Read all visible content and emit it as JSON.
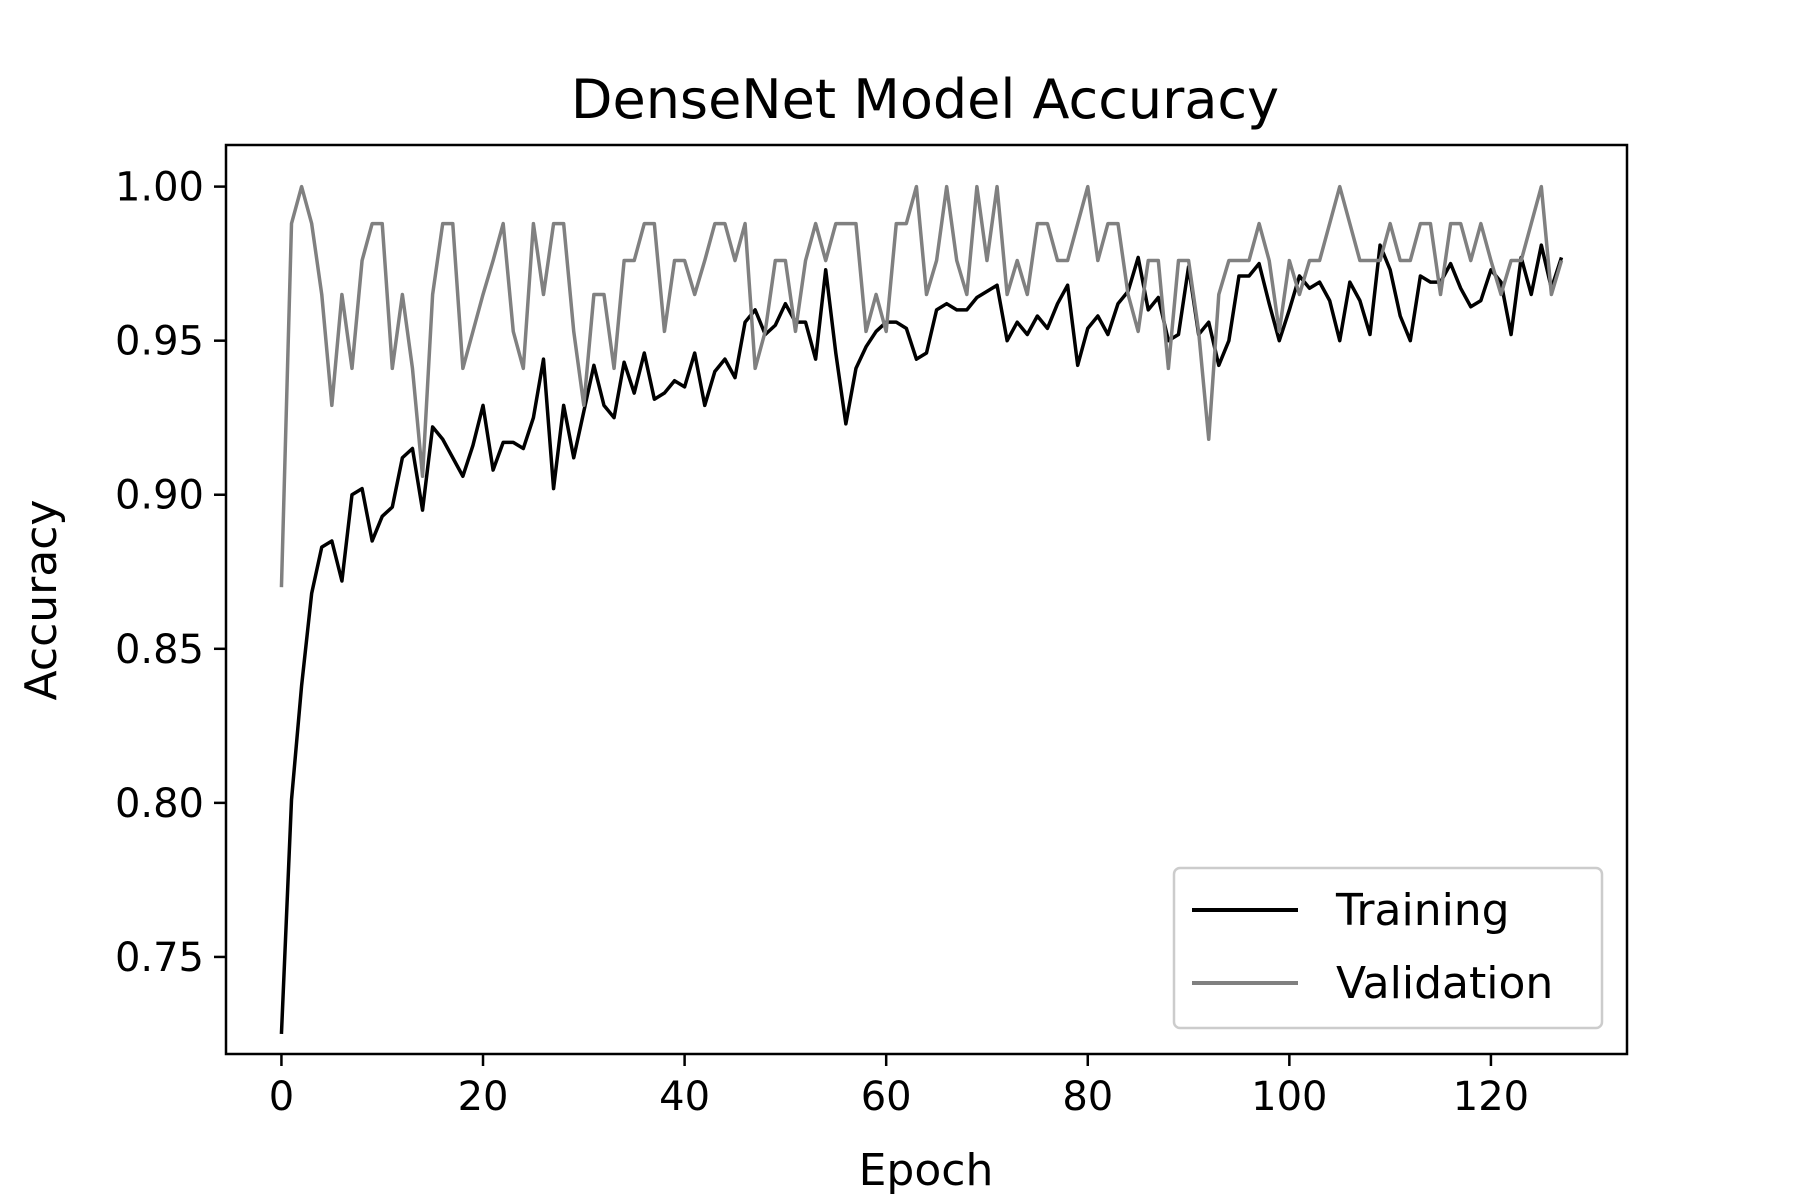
{
  "chart_data": {
    "type": "line",
    "title": "DenseNet Model Accuracy",
    "xlabel": "Epoch",
    "ylabel": "Accuracy",
    "xlim": [
      -5.5,
      133.5
    ],
    "ylim": [
      0.7185,
      1.0135
    ],
    "xticks": [
      0,
      20,
      40,
      60,
      80,
      100,
      120
    ],
    "yticks": [
      0.75,
      0.8,
      0.85,
      0.9,
      0.95,
      1.0
    ],
    "ytick_labels": [
      "0.75",
      "0.80",
      "0.85",
      "0.90",
      "0.95",
      "1.00"
    ],
    "grid": false,
    "legend_position": "lower-right",
    "series": [
      {
        "name": "Training",
        "color": "#000000",
        "values": [
          0.725,
          0.801,
          0.838,
          0.868,
          0.883,
          0.885,
          0.872,
          0.9,
          0.902,
          0.885,
          0.893,
          0.896,
          0.912,
          0.915,
          0.895,
          0.922,
          0.918,
          0.912,
          0.906,
          0.916,
          0.929,
          0.908,
          0.917,
          0.917,
          0.915,
          0.925,
          0.944,
          0.902,
          0.929,
          0.912,
          0.927,
          0.942,
          0.929,
          0.925,
          0.943,
          0.933,
          0.946,
          0.931,
          0.933,
          0.937,
          0.935,
          0.946,
          0.929,
          0.94,
          0.944,
          0.938,
          0.956,
          0.96,
          0.952,
          0.955,
          0.962,
          0.956,
          0.956,
          0.944,
          0.973,
          0.946,
          0.923,
          0.941,
          0.948,
          0.953,
          0.956,
          0.956,
          0.954,
          0.944,
          0.946,
          0.96,
          0.962,
          0.96,
          0.96,
          0.964,
          0.966,
          0.968,
          0.95,
          0.956,
          0.952,
          0.958,
          0.954,
          0.962,
          0.968,
          0.942,
          0.954,
          0.958,
          0.952,
          0.962,
          0.966,
          0.977,
          0.96,
          0.964,
          0.95,
          0.952,
          0.974,
          0.952,
          0.956,
          0.942,
          0.95,
          0.971,
          0.971,
          0.975,
          0.962,
          0.95,
          0.96,
          0.971,
          0.967,
          0.969,
          0.963,
          0.95,
          0.969,
          0.963,
          0.952,
          0.981,
          0.973,
          0.958,
          0.95,
          0.971,
          0.969,
          0.969,
          0.975,
          0.967,
          0.961,
          0.963,
          0.973,
          0.969,
          0.952,
          0.977,
          0.965,
          0.981,
          0.967,
          0.977
        ]
      },
      {
        "name": "Validation",
        "color": "#808080",
        "values": [
          0.87,
          0.988,
          1.0,
          0.988,
          0.965,
          0.929,
          0.965,
          0.941,
          0.976,
          0.988,
          0.988,
          0.941,
          0.965,
          0.941,
          0.906,
          0.965,
          0.988,
          0.988,
          0.941,
          0.953,
          0.965,
          0.976,
          0.988,
          0.953,
          0.941,
          0.988,
          0.965,
          0.988,
          0.988,
          0.953,
          0.929,
          0.965,
          0.965,
          0.941,
          0.976,
          0.976,
          0.988,
          0.988,
          0.953,
          0.976,
          0.976,
          0.965,
          0.976,
          0.988,
          0.988,
          0.976,
          0.988,
          0.941,
          0.953,
          0.976,
          0.976,
          0.953,
          0.976,
          0.988,
          0.976,
          0.988,
          0.988,
          0.988,
          0.953,
          0.965,
          0.953,
          0.988,
          0.988,
          1.0,
          0.965,
          0.976,
          1.0,
          0.976,
          0.965,
          1.0,
          0.976,
          1.0,
          0.965,
          0.976,
          0.965,
          0.988,
          0.988,
          0.976,
          0.976,
          0.988,
          1.0,
          0.976,
          0.988,
          0.988,
          0.965,
          0.953,
          0.976,
          0.976,
          0.941,
          0.976,
          0.976,
          0.953,
          0.918,
          0.965,
          0.976,
          0.976,
          0.976,
          0.988,
          0.976,
          0.953,
          0.976,
          0.965,
          0.976,
          0.976,
          0.988,
          1.0,
          0.988,
          0.976,
          0.976,
          0.976,
          0.988,
          0.976,
          0.976,
          0.988,
          0.988,
          0.965,
          0.988,
          0.988,
          0.976,
          0.988,
          0.976,
          0.965,
          0.976,
          0.976,
          0.988,
          1.0,
          0.965,
          0.976
        ]
      }
    ]
  }
}
